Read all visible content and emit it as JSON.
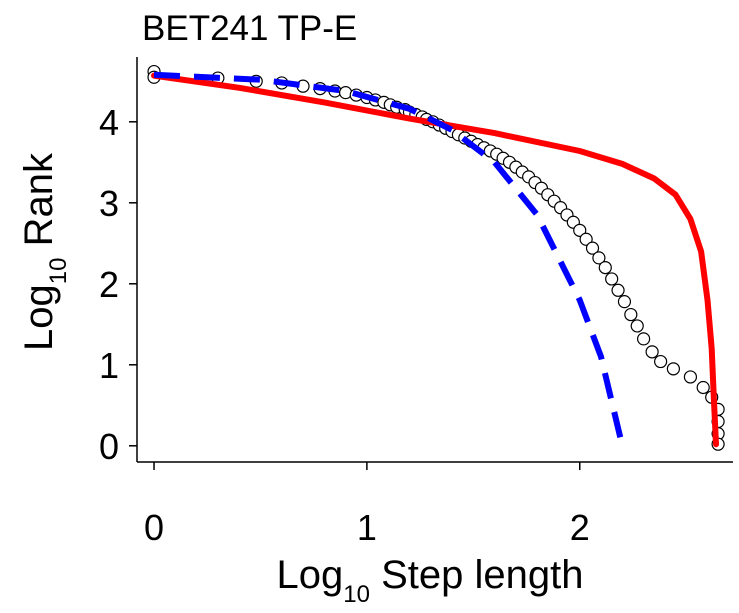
{
  "chart_data": {
    "type": "scatter",
    "title": "BET241 TP-E",
    "xlabel": {
      "base": "Log",
      "sub": "10",
      "rest": " Step length"
    },
    "ylabel": {
      "base": "Log",
      "sub": "10",
      "rest": " Rank"
    },
    "xlim": [
      -0.08,
      2.72
    ],
    "ylim": [
      -0.2,
      4.8
    ],
    "xticks": [
      0,
      1,
      2
    ],
    "yticks": [
      0,
      1,
      2,
      3,
      4
    ],
    "xtick_labels": [
      "0",
      "1",
      "2"
    ],
    "ytick_labels": [
      "0",
      "1",
      "2",
      "3",
      "4"
    ],
    "grid": false,
    "legend": "none",
    "series": [
      {
        "kind": "points",
        "marker": "open-circle",
        "points": [
          [
            0.0,
            4.62
          ],
          [
            0.0,
            4.55
          ],
          [
            0.3,
            4.54
          ],
          [
            0.48,
            4.5
          ],
          [
            0.6,
            4.48
          ],
          [
            0.7,
            4.44
          ],
          [
            0.78,
            4.41
          ],
          [
            0.85,
            4.38
          ],
          [
            0.9,
            4.36
          ],
          [
            0.95,
            4.33
          ],
          [
            1.0,
            4.3
          ],
          [
            1.04,
            4.27
          ],
          [
            1.08,
            4.24
          ],
          [
            1.11,
            4.21
          ],
          [
            1.14,
            4.18
          ],
          [
            1.18,
            4.15
          ],
          [
            1.2,
            4.12
          ],
          [
            1.23,
            4.09
          ],
          [
            1.26,
            4.06
          ],
          [
            1.28,
            4.03
          ],
          [
            1.31,
            4.0
          ],
          [
            1.34,
            3.96
          ],
          [
            1.37,
            3.92
          ],
          [
            1.4,
            3.88
          ],
          [
            1.43,
            3.84
          ],
          [
            1.46,
            3.8
          ],
          [
            1.49,
            3.76
          ],
          [
            1.52,
            3.72
          ],
          [
            1.55,
            3.68
          ],
          [
            1.58,
            3.64
          ],
          [
            1.61,
            3.6
          ],
          [
            1.64,
            3.55
          ],
          [
            1.67,
            3.5
          ],
          [
            1.7,
            3.44
          ],
          [
            1.73,
            3.38
          ],
          [
            1.76,
            3.32
          ],
          [
            1.79,
            3.25
          ],
          [
            1.82,
            3.18
          ],
          [
            1.85,
            3.1
          ],
          [
            1.88,
            3.02
          ],
          [
            1.91,
            2.94
          ],
          [
            1.94,
            2.85
          ],
          [
            1.97,
            2.76
          ],
          [
            2.0,
            2.66
          ],
          [
            2.03,
            2.55
          ],
          [
            2.06,
            2.44
          ],
          [
            2.09,
            2.32
          ],
          [
            2.12,
            2.2
          ],
          [
            2.15,
            2.06
          ],
          [
            2.18,
            1.92
          ],
          [
            2.21,
            1.78
          ],
          [
            2.24,
            1.62
          ],
          [
            2.27,
            1.48
          ],
          [
            2.3,
            1.32
          ],
          [
            2.34,
            1.16
          ],
          [
            2.38,
            1.04
          ],
          [
            2.44,
            0.95
          ],
          [
            2.52,
            0.85
          ],
          [
            2.58,
            0.72
          ],
          [
            2.62,
            0.6
          ],
          [
            2.65,
            0.45
          ],
          [
            2.65,
            0.3
          ],
          [
            2.65,
            0.15
          ],
          [
            2.65,
            0.02
          ]
        ]
      },
      {
        "kind": "line",
        "color": "#ff0000",
        "style": "solid",
        "points": [
          [
            0.0,
            4.57
          ],
          [
            0.4,
            4.42
          ],
          [
            0.8,
            4.24
          ],
          [
            1.2,
            4.04
          ],
          [
            1.6,
            3.86
          ],
          [
            2.0,
            3.64
          ],
          [
            2.2,
            3.48
          ],
          [
            2.35,
            3.3
          ],
          [
            2.45,
            3.1
          ],
          [
            2.52,
            2.8
          ],
          [
            2.57,
            2.4
          ],
          [
            2.6,
            1.8
          ],
          [
            2.62,
            1.2
          ],
          [
            2.63,
            0.6
          ],
          [
            2.64,
            0.02
          ]
        ]
      },
      {
        "kind": "line",
        "color": "#0000ff",
        "style": "dashed",
        "points": [
          [
            0.0,
            4.58
          ],
          [
            0.5,
            4.52
          ],
          [
            0.9,
            4.38
          ],
          [
            1.2,
            4.16
          ],
          [
            1.4,
            3.9
          ],
          [
            1.6,
            3.5
          ],
          [
            1.8,
            2.85
          ],
          [
            2.0,
            1.8
          ],
          [
            2.1,
            1.1
          ],
          [
            2.2,
            0.0
          ]
        ]
      }
    ]
  }
}
